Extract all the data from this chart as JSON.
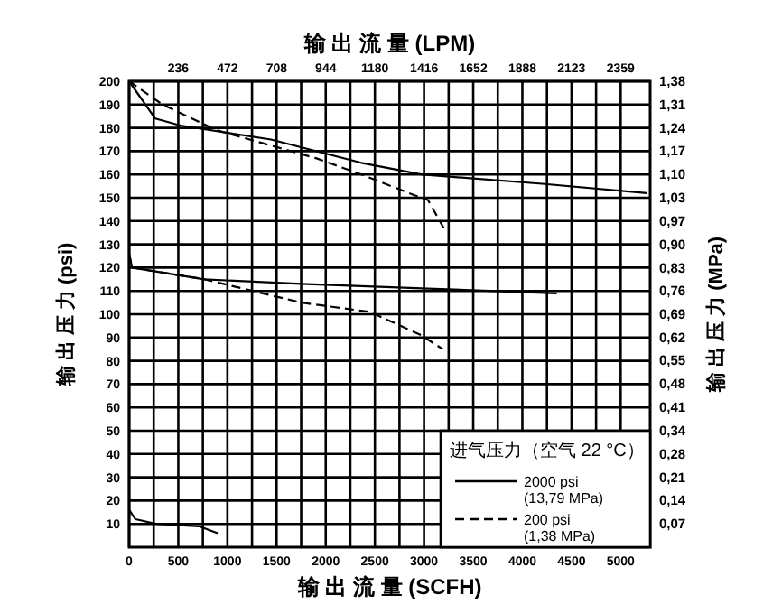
{
  "chart_data": {
    "type": "line",
    "xlabel": "输 出 流 量 (SCFH)",
    "x2label": "输 出 流 量 (LPM)",
    "ylabel": "输 出 压 力 (psi)",
    "y2label": "输 出 压 力 (MPa)",
    "legend_title": "进气压力（空气 22 °C）",
    "xlim": [
      0,
      5300
    ],
    "xticks": [
      0,
      500,
      1000,
      1500,
      2000,
      2500,
      3000,
      3500,
      4000,
      4500,
      5000
    ],
    "x2lim": [
      0,
      2501
    ],
    "x2ticks": [
      236,
      472,
      708,
      944,
      1180,
      1416,
      1652,
      1888,
      2123,
      2359
    ],
    "ylim": [
      0,
      200
    ],
    "yticks": [
      10,
      20,
      30,
      40,
      50,
      60,
      70,
      80,
      90,
      100,
      110,
      120,
      130,
      140,
      150,
      160,
      170,
      180,
      190,
      200
    ],
    "y2lim": [
      0,
      1.379
    ],
    "y2ticks": [
      {
        "value": 0.069,
        "label": "0,07"
      },
      {
        "value": 0.138,
        "label": "0,14"
      },
      {
        "value": 0.207,
        "label": "0,21"
      },
      {
        "value": 0.276,
        "label": "0,28"
      },
      {
        "value": 0.345,
        "label": "0,34"
      },
      {
        "value": 0.414,
        "label": "0,41"
      },
      {
        "value": 0.483,
        "label": "0,48"
      },
      {
        "value": 0.552,
        "label": "0,55"
      },
      {
        "value": 0.621,
        "label": "0,62"
      },
      {
        "value": 0.689,
        "label": "0,69"
      },
      {
        "value": 0.758,
        "label": "0,76"
      },
      {
        "value": 0.827,
        "label": "0,83"
      },
      {
        "value": 0.896,
        "label": "0,90"
      },
      {
        "value": 0.965,
        "label": "0,97"
      },
      {
        "value": 1.034,
        "label": "1,03"
      },
      {
        "value": 1.103,
        "label": "1,10"
      },
      {
        "value": 1.172,
        "label": "1,17"
      },
      {
        "value": 1.241,
        "label": "1,24"
      },
      {
        "value": 1.31,
        "label": "1,31"
      },
      {
        "value": 1.379,
        "label": "1,38"
      }
    ],
    "grid": true,
    "legend": "bottom right",
    "marker": "none",
    "series": [
      {
        "name": "2000 psi\n(13,79 MPa)",
        "color": "#000000",
        "line_style": "solid",
        "x": [
          0,
          266,
          524,
          1443,
          2362,
          2969,
          4200,
          5266
        ],
        "values": [
          200,
          184,
          181,
          175,
          165,
          160,
          156,
          152
        ]
      },
      {
        "name": "200 psi\n(1,38 MPa)",
        "color": "#000000",
        "line_style": "dashed",
        "x": [
          0,
          340,
          890,
          1900,
          2362,
          2969,
          3040,
          3200
        ],
        "values": [
          200,
          190,
          179,
          167,
          160,
          150,
          149,
          137
        ]
      },
      {
        "color": "#000000",
        "line_style": "solid",
        "x": [
          0,
          30,
          765,
          1750,
          3040,
          4350
        ],
        "values": [
          126,
          120,
          115,
          113,
          111,
          109
        ]
      },
      {
        "color": "#000000",
        "line_style": "dashed",
        "x": [
          0,
          30,
          765,
          1750,
          2450,
          2970,
          3190
        ],
        "values": [
          126,
          120,
          115,
          105,
          101,
          91,
          85
        ]
      },
      {
        "color": "#000000",
        "line_style": "solid",
        "x": [
          0,
          65,
          280,
          710,
          900
        ],
        "values": [
          16,
          12,
          10,
          9,
          6
        ]
      }
    ]
  }
}
